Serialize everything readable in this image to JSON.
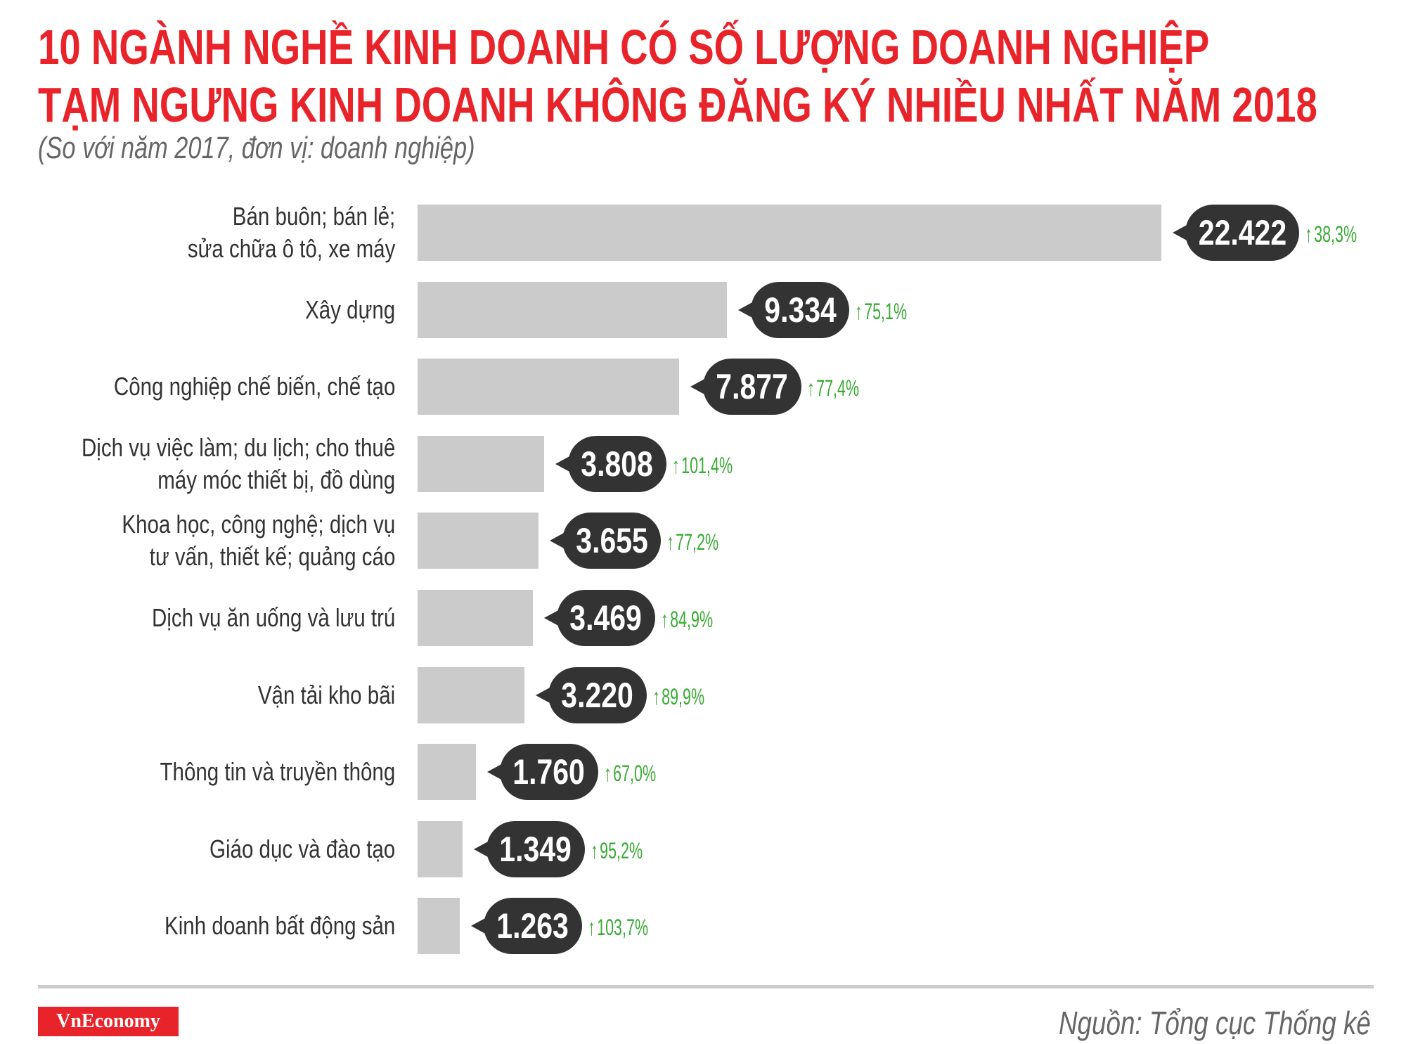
{
  "header": {
    "title_line1": "10 NGÀNH NGHỀ KINH DOANH CÓ SỐ LƯỢNG DOANH NGHIỆP",
    "title_line2": "TẠM NGƯNG KINH DOANH KHÔNG ĐĂNG KÝ NHIỀU NHẤT NĂM 2018",
    "subtitle": "(So với năm 2017, đơn vị: doanh nghiệp)"
  },
  "chart_data": {
    "type": "bar",
    "orientation": "horizontal",
    "title": "10 NGÀNH NGHỀ KINH DOANH CÓ SỐ LƯỢNG DOANH NGHIỆP TẠM NGƯNG KINH DOANH KHÔNG ĐĂNG KÝ NHIỀU NHẤT NĂM 2018",
    "subtitle": "(So với năm 2017, đơn vị: doanh nghiệp)",
    "categories": [
      [
        "Bán buôn; bán lẻ;",
        "sửa chữa ô tô, xe máy"
      ],
      [
        "Xây dựng"
      ],
      [
        "Công nghiệp chế biến, chế tạo"
      ],
      [
        "Dịch vụ việc làm; du lịch; cho thuê",
        "máy móc thiết bị, đồ dùng"
      ],
      [
        "Khoa học, công nghệ; dịch vụ",
        "tư vấn, thiết kế; quảng cáo"
      ],
      [
        "Dịch vụ ăn uống và lưu trú"
      ],
      [
        "Vận tải kho bãi"
      ],
      [
        "Thông tin và truyền thông"
      ],
      [
        "Giáo dục và đào tạo"
      ],
      [
        "Kinh doanh bất động sản"
      ]
    ],
    "values": [
      22422,
      9334,
      7877,
      3808,
      3655,
      3469,
      3220,
      1760,
      1349,
      1263
    ],
    "value_labels": [
      "22.422",
      "9.334",
      "7.877",
      "3.808",
      "3.655",
      "3.469",
      "3.220",
      "1.760",
      "1.349",
      "1.263"
    ],
    "change_labels": [
      "38,3%",
      "75,1%",
      "77,4%",
      "101,4%",
      "77,2%",
      "84,9%",
      "89,9%",
      "67,0%",
      "95,2%",
      "103,7%"
    ],
    "change_direction": "up",
    "change_icon": "arrow-up-icon",
    "grid": false,
    "colors": {
      "bar": "#cccbcb",
      "value_bubble": "#333333",
      "change": "#3aaa35",
      "title": "#e8232a"
    }
  },
  "footer": {
    "logo": "VnEconomy",
    "source": "Nguồn: Tổng cục Thống kê"
  }
}
